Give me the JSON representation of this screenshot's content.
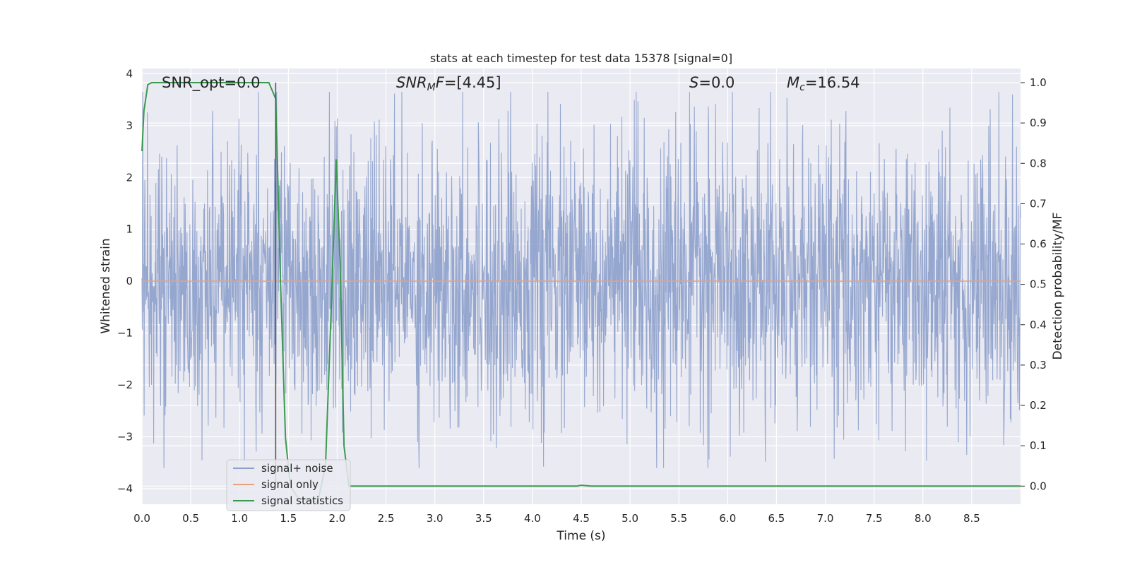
{
  "chart_data": {
    "type": "line",
    "title": "stats at each timestep for test data 15378 [signal=0]",
    "xlabel": "Time (s)",
    "ylabel_left": "Whitened strain",
    "ylabel_right": "Detection probability/MF",
    "xlim": [
      0.0,
      9.0
    ],
    "ylim_left": [
      -4.3,
      4.1
    ],
    "ylim_right": [
      -0.045,
      1.035
    ],
    "x_ticks": [
      "0.0",
      "0.5",
      "1.0",
      "1.5",
      "2.0",
      "2.5",
      "3.0",
      "3.5",
      "4.0",
      "4.5",
      "5.0",
      "5.5",
      "6.0",
      "6.5",
      "7.0",
      "7.5",
      "8.0",
      "8.5"
    ],
    "y_ticks_left": [
      "4",
      "3",
      "2",
      "1",
      "0",
      "−1",
      "−2",
      "−3",
      "−4"
    ],
    "y_ticks_right": [
      "1.0",
      "0.9",
      "0.8",
      "0.7",
      "0.6",
      "0.5",
      "0.4",
      "0.3",
      "0.2",
      "0.1",
      "0.0"
    ],
    "grid": true,
    "annotations": {
      "snr_opt": "SNR_opt=0.0",
      "snr_mf": "=[4.45]",
      "snr_mf_sym": "SNR",
      "snr_mf_sub": "M",
      "snr_mf_tail": "F",
      "s_sym": "S",
      "s_val": "=0.0",
      "mc_sym": "M",
      "mc_sub": "c",
      "mc_val": "=16.54"
    },
    "marker_line_x": 1.37,
    "legend": {
      "placement": "lower-left",
      "entries": [
        "signal+ noise",
        "signal only",
        "signal statistics"
      ]
    },
    "series": [
      {
        "name": "signal+ noise",
        "axis": "left",
        "color": "#8da0cb",
        "description_values": {
          "amplitude_approx": 1.35,
          "peak_max": 3.65,
          "peak_min": -3.6
        }
      },
      {
        "name": "signal only",
        "axis": "left",
        "color": "#e8a07e",
        "x": [
          0.0,
          9.0
        ],
        "y": [
          0.0,
          0.0
        ]
      },
      {
        "name": "signal statistics",
        "axis": "right",
        "color": "#3b9a52",
        "x": [
          0.0,
          0.02,
          0.06,
          0.1,
          0.2,
          0.5,
          1.0,
          1.3,
          1.37,
          1.42,
          1.47,
          1.52,
          1.6,
          1.8,
          1.88,
          1.94,
          1.99,
          2.03,
          2.07,
          2.12,
          2.3,
          3.0,
          4.0,
          4.45,
          4.5,
          4.6,
          5.0,
          6.0,
          7.0,
          8.0,
          8.5,
          9.0
        ],
        "y": [
          0.83,
          0.93,
          0.995,
          1.0,
          1.0,
          1.0,
          1.0,
          1.0,
          0.96,
          0.5,
          0.12,
          0.0,
          -0.03,
          -0.04,
          0.05,
          0.45,
          0.81,
          0.55,
          0.1,
          0.0,
          0.0,
          0.0,
          0.0,
          0.0,
          0.002,
          0.0,
          0.0,
          0.0,
          0.0,
          0.0,
          0.0,
          0.0
        ]
      }
    ],
    "colors": {
      "background": "#eaeaf2",
      "grid": "#ffffff",
      "marker_line": "#555555"
    }
  }
}
